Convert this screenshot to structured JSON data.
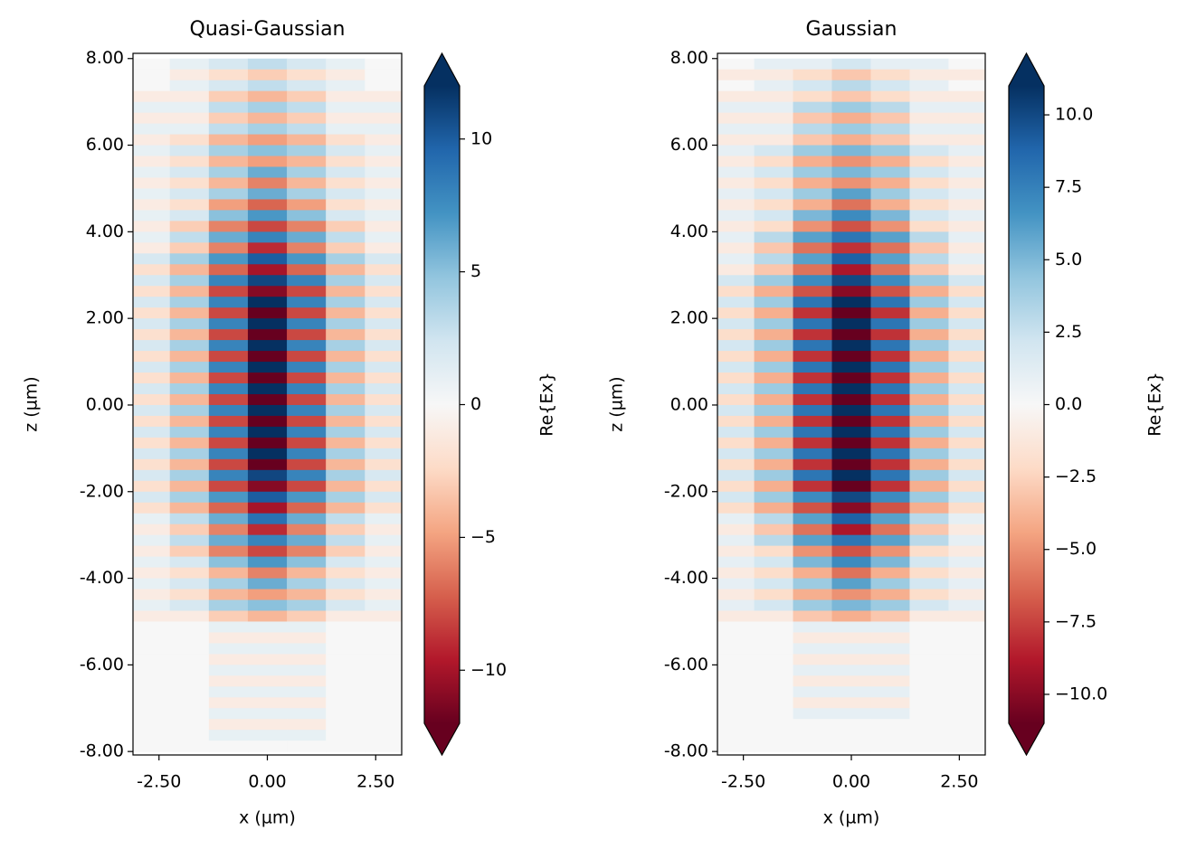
{
  "chart_data": [
    {
      "type": "heatmap",
      "title": "Quasi-Gaussian",
      "x_label": "x (µm)",
      "y_label": "z (µm)",
      "colorbar_label": "Re{Ex}",
      "xlim": [
        -3.1,
        3.1
      ],
      "ylim": [
        -8.08,
        8.12
      ],
      "xticks": [
        {
          "value": -2.5,
          "label": "-2.50"
        },
        {
          "value": 0,
          "label": "0.00"
        },
        {
          "value": 2.5,
          "label": "2.50"
        }
      ],
      "yticks": [
        {
          "value": -8,
          "label": "-8.00"
        },
        {
          "value": -6,
          "label": "-6.00"
        },
        {
          "value": -4,
          "label": "-4.00"
        },
        {
          "value": -2,
          "label": "-2.00"
        },
        {
          "value": 0,
          "label": "0.00"
        },
        {
          "value": 2,
          "label": "2.00"
        },
        {
          "value": 4,
          "label": "4.00"
        },
        {
          "value": 6,
          "label": "6.00"
        },
        {
          "value": 8,
          "label": "8.00"
        }
      ],
      "clim": [
        -12,
        12
      ],
      "cticks": [
        {
          "value": -10,
          "label": "−10"
        },
        {
          "value": -5,
          "label": "−5"
        },
        0,
        5,
        10
      ],
      "colormap": [
        "#67001f",
        "#b2182b",
        "#d6604d",
        "#f4a582",
        "#fddbc7",
        "#f7f7f7",
        "#d1e5f0",
        "#92c5de",
        "#4393c3",
        "#2166ac",
        "#053061"
      ],
      "extent": [
        -3.15,
        3.15,
        -8,
        8
      ],
      "z": [
        [
          0,
          1,
          2,
          3,
          2,
          1,
          0
        ],
        [
          0,
          -1,
          -2,
          -3,
          -2,
          -1,
          0
        ],
        [
          0,
          1,
          2,
          3,
          2,
          1,
          0
        ],
        [
          -1,
          -1,
          -3,
          -4,
          -3,
          -1,
          -1
        ],
        [
          1,
          1,
          3,
          4,
          3,
          1,
          1
        ],
        [
          -1,
          -1,
          -3,
          -4,
          -3,
          -1,
          -1
        ],
        [
          1,
          1,
          3,
          4,
          3,
          1,
          1
        ],
        [
          -1,
          -2,
          -4,
          -5,
          -4,
          -2,
          -1
        ],
        [
          1,
          2,
          4,
          5,
          4,
          2,
          1
        ],
        [
          -1,
          -2,
          -4,
          -5,
          -4,
          -2,
          -1
        ],
        [
          1,
          2,
          4,
          6,
          4,
          2,
          1
        ],
        [
          -1,
          -2,
          -4,
          -6,
          -4,
          -2,
          -1
        ],
        [
          1,
          2,
          4,
          6,
          4,
          2,
          1
        ],
        [
          -1,
          -2,
          -5,
          -7,
          -5,
          -2,
          -1
        ],
        [
          1,
          2,
          5,
          7,
          5,
          2,
          1
        ],
        [
          -1,
          -3,
          -6,
          -8,
          -6,
          -3,
          -1
        ],
        [
          1,
          3,
          6,
          8,
          6,
          3,
          1
        ],
        [
          -1,
          -3,
          -6,
          -9,
          -6,
          -3,
          -1
        ],
        [
          2,
          4,
          7,
          10,
          7,
          4,
          2
        ],
        [
          -2,
          -4,
          -7,
          -10,
          -7,
          -4,
          -2
        ],
        [
          2,
          4,
          8,
          11,
          8,
          4,
          2
        ],
        [
          -2,
          -4,
          -8,
          -11,
          -8,
          -4,
          -2
        ],
        [
          2,
          4,
          8,
          12,
          8,
          4,
          2
        ],
        [
          -2,
          -4,
          -8,
          -12,
          -8,
          -4,
          -2
        ],
        [
          2,
          4,
          8,
          12,
          8,
          4,
          2
        ],
        [
          -2,
          -4,
          -8,
          -12,
          -8,
          -4,
          -2
        ],
        [
          2,
          4,
          8,
          12,
          8,
          4,
          2
        ],
        [
          -2,
          -4,
          -8,
          -12,
          -8,
          -4,
          -2
        ],
        [
          2,
          4,
          8,
          12,
          8,
          4,
          2
        ],
        [
          -2,
          -4,
          -8,
          -12,
          -8,
          -4,
          -2
        ],
        [
          2,
          4,
          8,
          12,
          8,
          4,
          2
        ],
        [
          -2,
          -4,
          -8,
          -12,
          -8,
          -4,
          -2
        ],
        [
          2,
          4,
          8,
          12,
          8,
          4,
          2
        ],
        [
          -2,
          -4,
          -8,
          -12,
          -8,
          -4,
          -2
        ],
        [
          2,
          4,
          8,
          12,
          8,
          4,
          2
        ],
        [
          -2,
          -4,
          -8,
          -12,
          -8,
          -4,
          -2
        ],
        [
          2,
          4,
          8,
          12,
          8,
          4,
          2
        ],
        [
          -2,
          -4,
          -8,
          -12,
          -8,
          -4,
          -2
        ],
        [
          2,
          4,
          8,
          11,
          8,
          4,
          2
        ],
        [
          -2,
          -4,
          -8,
          -11,
          -8,
          -4,
          -2
        ],
        [
          2,
          4,
          7,
          10,
          7,
          4,
          2
        ],
        [
          -2,
          -4,
          -7,
          -10,
          -7,
          -4,
          -2
        ],
        [
          1,
          3,
          6,
          9,
          6,
          3,
          1
        ],
        [
          -1,
          -3,
          -6,
          -9,
          -6,
          -3,
          -1
        ],
        [
          1,
          3,
          6,
          8,
          6,
          3,
          1
        ],
        [
          -1,
          -3,
          -6,
          -8,
          -6,
          -3,
          -1
        ],
        [
          1,
          2,
          5,
          7,
          5,
          2,
          1
        ],
        [
          -1,
          -2,
          -4,
          -6,
          -4,
          -2,
          -1
        ],
        [
          1,
          2,
          4,
          6,
          4,
          2,
          1
        ],
        [
          -1,
          -2,
          -4,
          -5,
          -4,
          -2,
          -1
        ],
        [
          1,
          2,
          4,
          5,
          4,
          2,
          1
        ],
        [
          -1,
          -1,
          -3,
          -4,
          -3,
          -1,
          -1
        ],
        [
          0,
          0,
          1,
          1,
          1,
          0,
          0
        ],
        [
          0,
          0,
          -1,
          -1,
          -1,
          0,
          0
        ],
        [
          0,
          0,
          1,
          1,
          1,
          0,
          0
        ],
        [
          0,
          0,
          -1,
          -1,
          -1,
          0,
          0
        ],
        [
          0,
          0,
          1,
          1,
          1,
          0,
          0
        ],
        [
          0,
          0,
          -1,
          -1,
          -1,
          0,
          0
        ],
        [
          0,
          0,
          1,
          1,
          1,
          0,
          0
        ],
        [
          0,
          0,
          -1,
          -1,
          -1,
          0,
          0
        ],
        [
          0,
          0,
          1,
          1,
          1,
          0,
          0
        ],
        [
          0,
          0,
          -1,
          -1,
          -1,
          0,
          0
        ],
        [
          0,
          0,
          1,
          1,
          1,
          0,
          0
        ],
        [
          0,
          0,
          0,
          0,
          0,
          0,
          0
        ]
      ]
    },
    {
      "type": "heatmap",
      "title": "Gaussian",
      "x_label": "x (µm)",
      "y_label": "z (µm)",
      "colorbar_label": "Re{Ex}",
      "xlim": [
        -3.1,
        3.1
      ],
      "ylim": [
        -8.08,
        8.12
      ],
      "xticks": [
        {
          "value": -2.5,
          "label": "-2.50"
        },
        {
          "value": 0,
          "label": "0.00"
        },
        {
          "value": 2.5,
          "label": "2.50"
        }
      ],
      "yticks": [
        {
          "value": -8,
          "label": "-8.00"
        },
        {
          "value": -6,
          "label": "-6.00"
        },
        {
          "value": -4,
          "label": "-4.00"
        },
        {
          "value": -2,
          "label": "-2.00"
        },
        {
          "value": 0,
          "label": "0.00"
        },
        {
          "value": 2,
          "label": "2.00"
        },
        {
          "value": 4,
          "label": "4.00"
        },
        {
          "value": 6,
          "label": "6.00"
        },
        {
          "value": 8,
          "label": "8.00"
        }
      ],
      "clim": [
        -11,
        11
      ],
      "cticks": [
        {
          "value": -10,
          "label": "−10.0"
        },
        {
          "value": -7.5,
          "label": "−7.5"
        },
        {
          "value": -5,
          "label": "−5.0"
        },
        {
          "value": -2.5,
          "label": "−2.5"
        },
        {
          "value": 0,
          "label": "0.0"
        },
        2.5,
        {
          "value": 5,
          "label": "5.0"
        },
        7.5,
        {
          "value": 10,
          "label": "10.0"
        }
      ],
      "colormap": [
        "#67001f",
        "#b2182b",
        "#d6604d",
        "#f4a582",
        "#fddbc7",
        "#f7f7f7",
        "#d1e5f0",
        "#92c5de",
        "#4393c3",
        "#2166ac",
        "#053061"
      ],
      "extent": [
        -3.15,
        3.15,
        -8,
        8
      ],
      "z": [
        [
          0,
          1,
          1,
          2,
          1,
          1,
          0
        ],
        [
          -1,
          -1,
          -2,
          -3,
          -2,
          -1,
          -1
        ],
        [
          0,
          1,
          2,
          3,
          2,
          1,
          0
        ],
        [
          -1,
          -1,
          -2,
          -3,
          -2,
          -1,
          -1
        ],
        [
          1,
          1,
          3,
          4,
          3,
          1,
          1
        ],
        [
          -1,
          -1,
          -3,
          -4,
          -3,
          -1,
          -1
        ],
        [
          1,
          1,
          3,
          4,
          3,
          1,
          1
        ],
        [
          -1,
          -1,
          -3,
          -4,
          -3,
          -1,
          -1
        ],
        [
          1,
          2,
          4,
          5,
          4,
          2,
          1
        ],
        [
          -1,
          -2,
          -4,
          -5,
          -4,
          -2,
          -1
        ],
        [
          1,
          2,
          4,
          5,
          4,
          2,
          1
        ],
        [
          -1,
          -2,
          -4,
          -5,
          -4,
          -2,
          -1
        ],
        [
          1,
          2,
          4,
          6,
          4,
          2,
          1
        ],
        [
          -1,
          -2,
          -4,
          -6,
          -4,
          -2,
          -1
        ],
        [
          1,
          2,
          5,
          7,
          5,
          2,
          1
        ],
        [
          -1,
          -2,
          -5,
          -7,
          -5,
          -2,
          -1
        ],
        [
          1,
          3,
          6,
          8,
          6,
          3,
          1
        ],
        [
          -1,
          -3,
          -6,
          -8,
          -6,
          -3,
          -1
        ],
        [
          1,
          3,
          6,
          9,
          6,
          3,
          1
        ],
        [
          -1,
          -3,
          -6,
          -9,
          -6,
          -3,
          -1
        ],
        [
          2,
          4,
          7,
          10,
          7,
          4,
          2
        ],
        [
          -2,
          -4,
          -7,
          -10,
          -7,
          -4,
          -2
        ],
        [
          2,
          4,
          8,
          11,
          8,
          4,
          2
        ],
        [
          -2,
          -4,
          -8,
          -11,
          -8,
          -4,
          -2
        ],
        [
          2,
          4,
          8,
          11,
          8,
          4,
          2
        ],
        [
          -2,
          -4,
          -8,
          -11,
          -8,
          -4,
          -2
        ],
        [
          2,
          4,
          8,
          11,
          8,
          4,
          2
        ],
        [
          -2,
          -4,
          -8,
          -11,
          -8,
          -4,
          -2
        ],
        [
          2,
          4,
          8,
          11,
          8,
          4,
          2
        ],
        [
          -2,
          -4,
          -8,
          -11,
          -8,
          -4,
          -2
        ],
        [
          2,
          4,
          8,
          11,
          8,
          4,
          2
        ],
        [
          -2,
          -4,
          -8,
          -11,
          -8,
          -4,
          -2
        ],
        [
          2,
          4,
          8,
          11,
          8,
          4,
          2
        ],
        [
          -2,
          -4,
          -8,
          -11,
          -8,
          -4,
          -2
        ],
        [
          2,
          4,
          8,
          11,
          8,
          4,
          2
        ],
        [
          -2,
          -4,
          -8,
          -11,
          -8,
          -4,
          -2
        ],
        [
          2,
          4,
          8,
          11,
          8,
          4,
          2
        ],
        [
          -2,
          -4,
          -8,
          -11,
          -8,
          -4,
          -2
        ],
        [
          2,
          4,
          8,
          11,
          8,
          4,
          2
        ],
        [
          -2,
          -4,
          -8,
          -11,
          -8,
          -4,
          -2
        ],
        [
          2,
          4,
          7,
          10,
          7,
          4,
          2
        ],
        [
          -2,
          -4,
          -7,
          -10,
          -7,
          -4,
          -2
        ],
        [
          1,
          3,
          6,
          9,
          6,
          3,
          1
        ],
        [
          -1,
          -3,
          -6,
          -9,
          -6,
          -3,
          -1
        ],
        [
          1,
          3,
          6,
          8,
          6,
          3,
          1
        ],
        [
          -1,
          -2,
          -5,
          -7,
          -5,
          -2,
          -1
        ],
        [
          1,
          2,
          5,
          7,
          5,
          2,
          1
        ],
        [
          -1,
          -2,
          -4,
          -6,
          -4,
          -2,
          -1
        ],
        [
          1,
          2,
          4,
          6,
          4,
          2,
          1
        ],
        [
          -1,
          -2,
          -4,
          -5,
          -4,
          -2,
          -1
        ],
        [
          1,
          2,
          4,
          5,
          4,
          2,
          1
        ],
        [
          -1,
          -1,
          -3,
          -4,
          -3,
          -1,
          -1
        ],
        [
          0,
          0,
          1,
          1,
          1,
          0,
          0
        ],
        [
          0,
          0,
          -1,
          -1,
          -1,
          0,
          0
        ],
        [
          0,
          0,
          1,
          1,
          1,
          0,
          0
        ],
        [
          0,
          0,
          -1,
          -1,
          -1,
          0,
          0
        ],
        [
          0,
          0,
          1,
          1,
          1,
          0,
          0
        ],
        [
          0,
          0,
          -1,
          -1,
          -1,
          0,
          0
        ],
        [
          0,
          0,
          1,
          1,
          1,
          0,
          0
        ],
        [
          0,
          0,
          -1,
          -1,
          -1,
          0,
          0
        ],
        [
          0,
          0,
          1,
          1,
          1,
          0,
          0
        ],
        [
          0,
          0,
          0,
          0,
          0,
          0,
          0
        ],
        [
          0,
          0,
          0,
          0,
          0,
          0,
          0
        ],
        [
          0,
          0,
          0,
          0,
          0,
          0,
          0
        ]
      ]
    }
  ]
}
